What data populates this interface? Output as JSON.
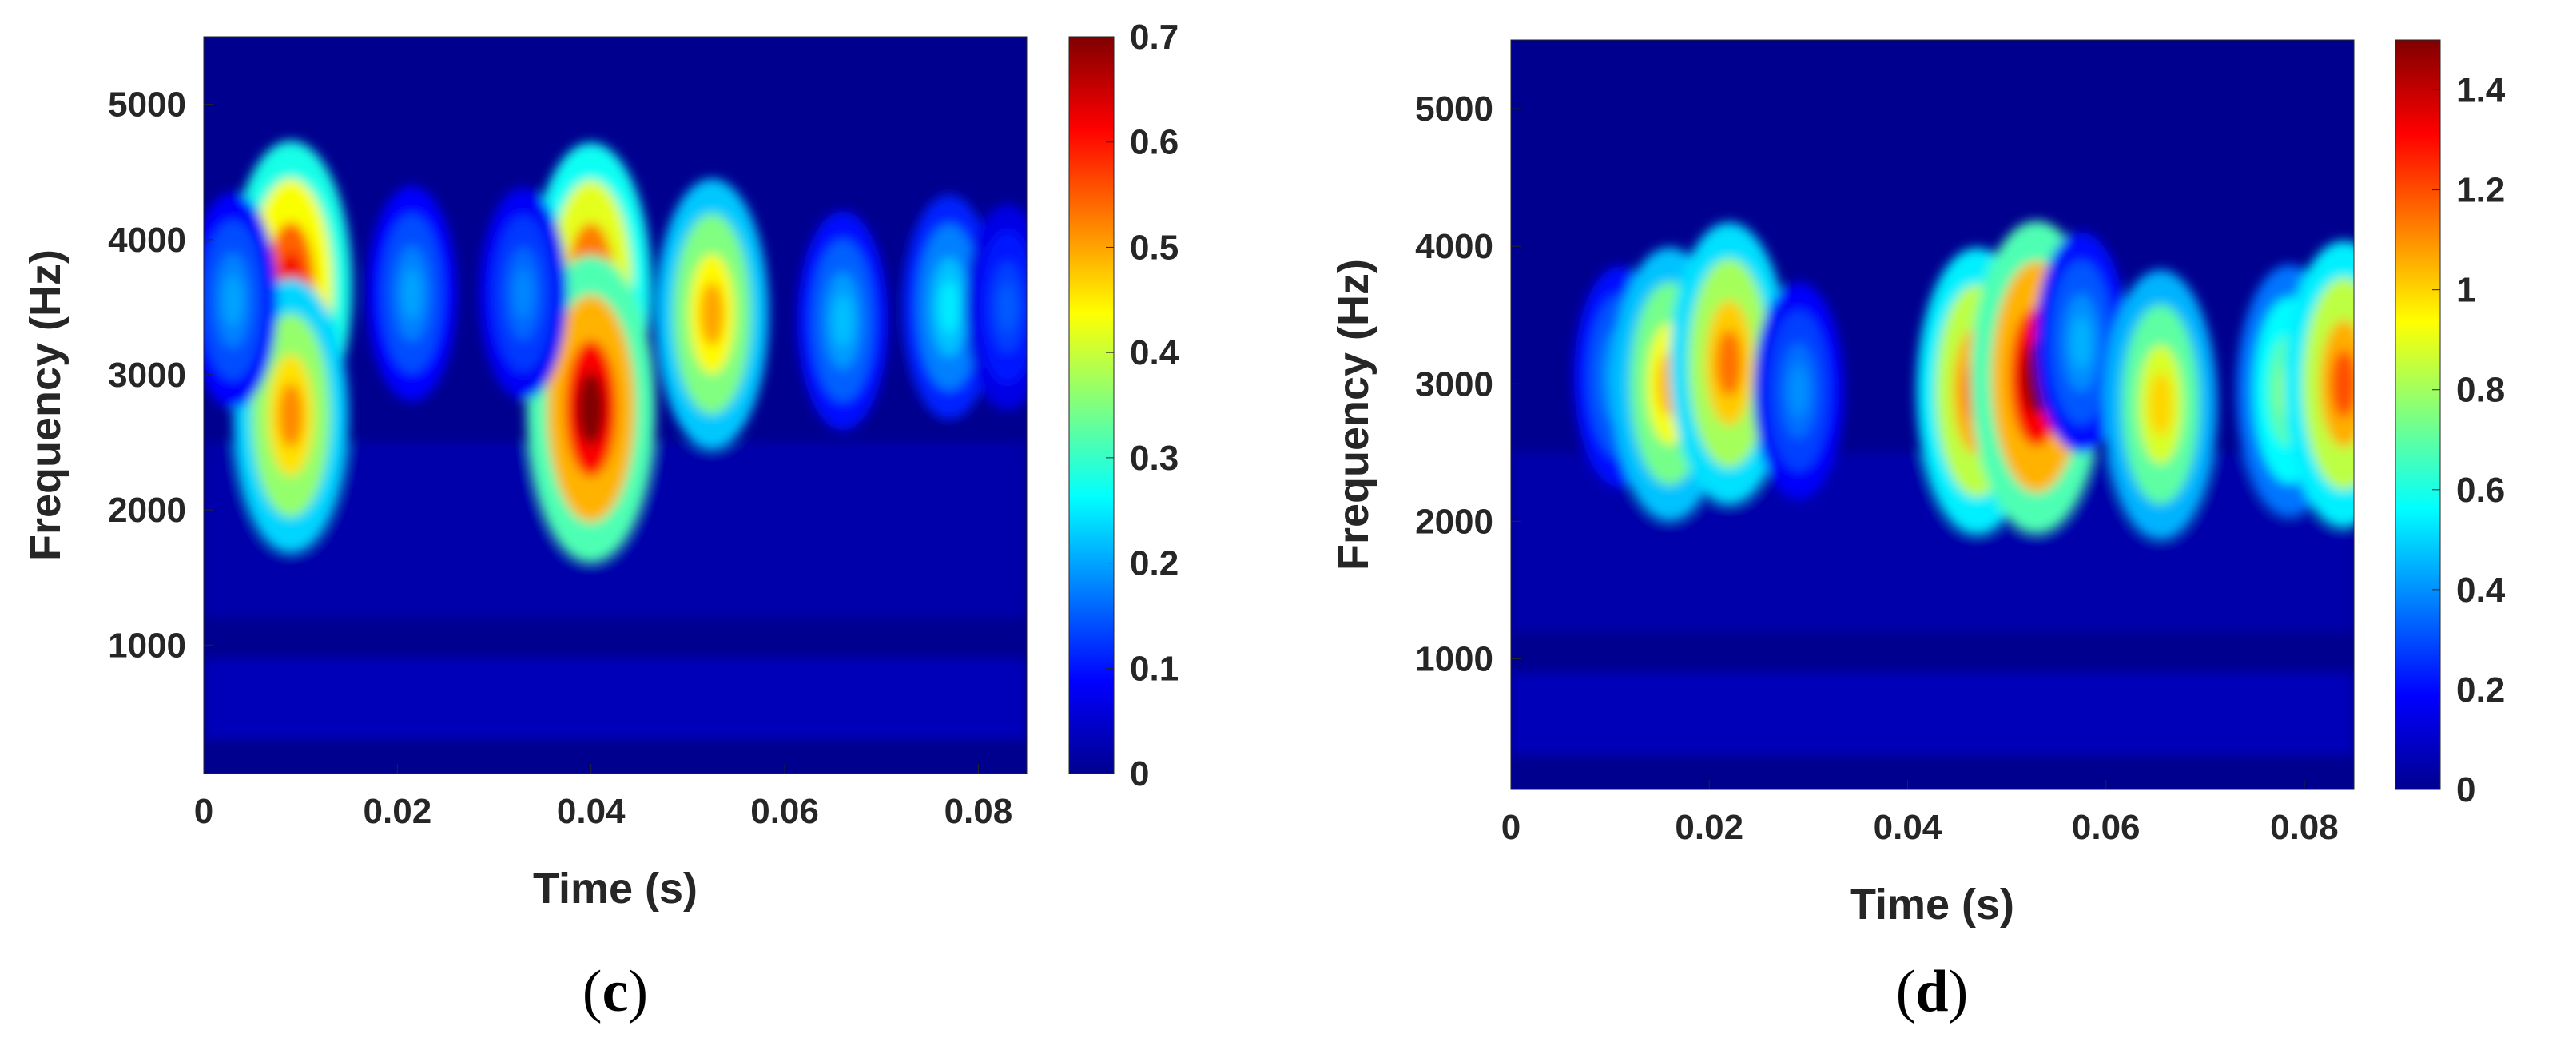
{
  "chart_data": [
    {
      "type": "heatmap",
      "panel_label": "c",
      "xlabel": "Time (s)",
      "ylabel": "Frequency (Hz)",
      "xlim": [
        0,
        0.085
      ],
      "ylim": [
        50,
        5500
      ],
      "xticks": [
        "0",
        "0.02",
        "0.04",
        "0.06",
        "0.08"
      ],
      "xtick_values": [
        0,
        0.02,
        0.04,
        0.06,
        0.08
      ],
      "yticks": [
        "1000",
        "2000",
        "3000",
        "4000",
        "5000"
      ],
      "ytick_values": [
        1000,
        2000,
        3000,
        4000,
        5000
      ],
      "colorbar": {
        "range": [
          0,
          0.7
        ],
        "ticks": [
          "0",
          "0.1",
          "0.2",
          "0.3",
          "0.4",
          "0.5",
          "0.6",
          "0.7"
        ],
        "tick_values": [
          0,
          0.1,
          0.2,
          0.3,
          0.4,
          0.5,
          0.6,
          0.7
        ],
        "colormap": "jet"
      },
      "hotspots": [
        {
          "t": 0.009,
          "f": 3650,
          "value": 0.62
        },
        {
          "t": 0.009,
          "f": 2700,
          "value": 0.52
        },
        {
          "t": 0.04,
          "f": 3650,
          "value": 0.6
        },
        {
          "t": 0.04,
          "f": 2750,
          "value": 0.7
        },
        {
          "t": 0.0525,
          "f": 3450,
          "value": 0.5
        },
        {
          "t": 0.0215,
          "f": 3600,
          "value": 0.2
        },
        {
          "t": 0.033,
          "f": 3600,
          "value": 0.18
        },
        {
          "t": 0.003,
          "f": 3550,
          "value": 0.2
        },
        {
          "t": 0.066,
          "f": 3400,
          "value": 0.22
        },
        {
          "t": 0.077,
          "f": 3500,
          "value": 0.25
        },
        {
          "t": 0.083,
          "f": 3500,
          "value": 0.15
        }
      ]
    },
    {
      "type": "heatmap",
      "panel_label": "d",
      "xlabel": "Time (s)",
      "ylabel": "Frequency (Hz)",
      "xlim": [
        0,
        0.085
      ],
      "ylim": [
        50,
        5500
      ],
      "xticks": [
        "0",
        "0.02",
        "0.04",
        "0.06",
        "0.08"
      ],
      "xtick_values": [
        0,
        0.02,
        0.04,
        0.06,
        0.08
      ],
      "yticks": [
        "1000",
        "2000",
        "3000",
        "4000",
        "5000"
      ],
      "ytick_values": [
        1000,
        2000,
        3000,
        4000,
        5000
      ],
      "colorbar": {
        "range": [
          0,
          1.5
        ],
        "ticks": [
          "0",
          "0.2",
          "0.4",
          "0.6",
          "0.8",
          "1",
          "1.2",
          "1.4"
        ],
        "tick_values": [
          0,
          0.2,
          0.4,
          0.6,
          0.8,
          1.0,
          1.2,
          1.4
        ],
        "colormap": "jet"
      },
      "hotspots": [
        {
          "t": 0.011,
          "f": 3050,
          "value": 0.45
        },
        {
          "t": 0.016,
          "f": 3000,
          "value": 1.05
        },
        {
          "t": 0.022,
          "f": 3150,
          "value": 1.15
        },
        {
          "t": 0.029,
          "f": 2950,
          "value": 0.4
        },
        {
          "t": 0.047,
          "f": 2950,
          "value": 1.2
        },
        {
          "t": 0.053,
          "f": 3050,
          "value": 1.5
        },
        {
          "t": 0.0575,
          "f": 3300,
          "value": 0.45
        },
        {
          "t": 0.0655,
          "f": 2850,
          "value": 1.0
        },
        {
          "t": 0.0785,
          "f": 2950,
          "value": 0.8
        },
        {
          "t": 0.084,
          "f": 3000,
          "value": 1.2
        }
      ]
    }
  ]
}
